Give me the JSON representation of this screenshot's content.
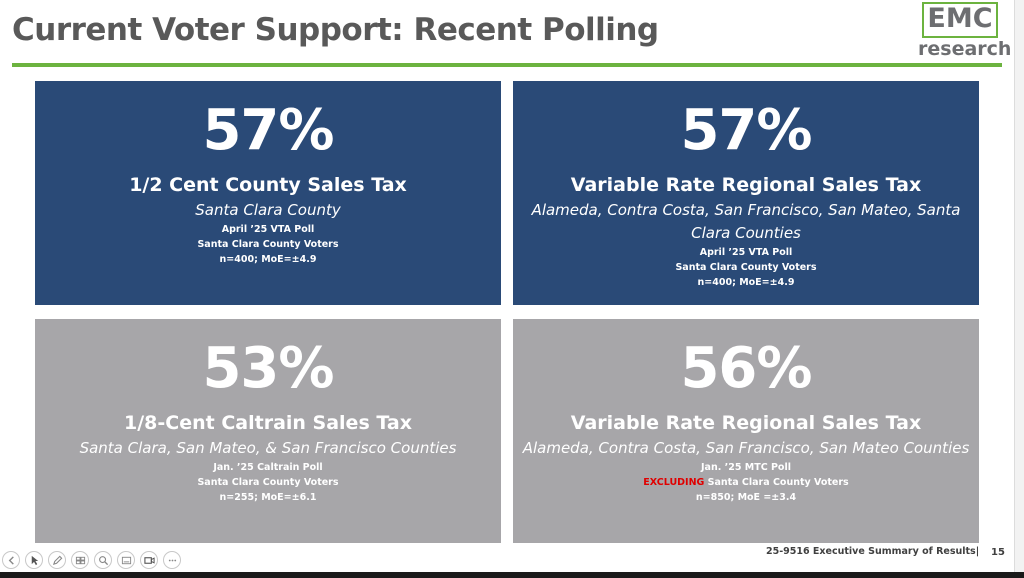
{
  "slide": {
    "title": "Current Voter Support: Recent Polling",
    "logo": {
      "text_top": "EMC",
      "text_bottom": "research"
    }
  },
  "panels": [
    {
      "percent": "57%",
      "measure": "1/2 Cent County Sales Tax",
      "region": "Santa Clara County",
      "poll": "April ’25 VTA Poll",
      "voters_prefix": "",
      "voters": "Santa Clara County Voters",
      "sample": "n=400; MoE=±4.9"
    },
    {
      "percent": "57%",
      "measure": "Variable Rate Regional Sales Tax",
      "region": "Alameda, Contra Costa, San Francisco, San Mateo, Santa Clara Counties",
      "poll": "April ’25 VTA Poll",
      "voters_prefix": "",
      "voters": "Santa Clara County Voters",
      "sample": "n=400; MoE=±4.9"
    },
    {
      "percent": "53%",
      "measure": "1/8-Cent Caltrain Sales Tax",
      "region": "Santa Clara, San Mateo, & San Francisco Counties",
      "poll": "Jan. ’25 Caltrain Poll",
      "voters_prefix": "",
      "voters": "Santa Clara County Voters",
      "sample": "n=255; MoE=±6.1"
    },
    {
      "percent": "56%",
      "measure": "Variable Rate Regional Sales Tax",
      "region": "Alameda, Contra Costa, San Francisco, San Mateo Counties",
      "poll": "Jan. ’25 MTC Poll",
      "voters_prefix": "EXCLUDING",
      "voters": "Santa Clara County Voters",
      "sample": "n=850; MoE =±3.4"
    }
  ],
  "footer": {
    "reference": "25-9516 Executive Summary of Results|",
    "page_number": "15"
  },
  "toolbar": {
    "icons": [
      "previous-icon",
      "pointer-icon",
      "pen-icon",
      "slides-icon",
      "zoom-icon",
      "subtitles-icon",
      "camera-icon",
      "more-icon"
    ]
  },
  "colors": {
    "blue_panel": "#2a4a77",
    "gray_panel": "#a7a6a9",
    "accent_green": "#6cb33f",
    "title_gray": "#595959",
    "excluding_red": "#e00000"
  }
}
